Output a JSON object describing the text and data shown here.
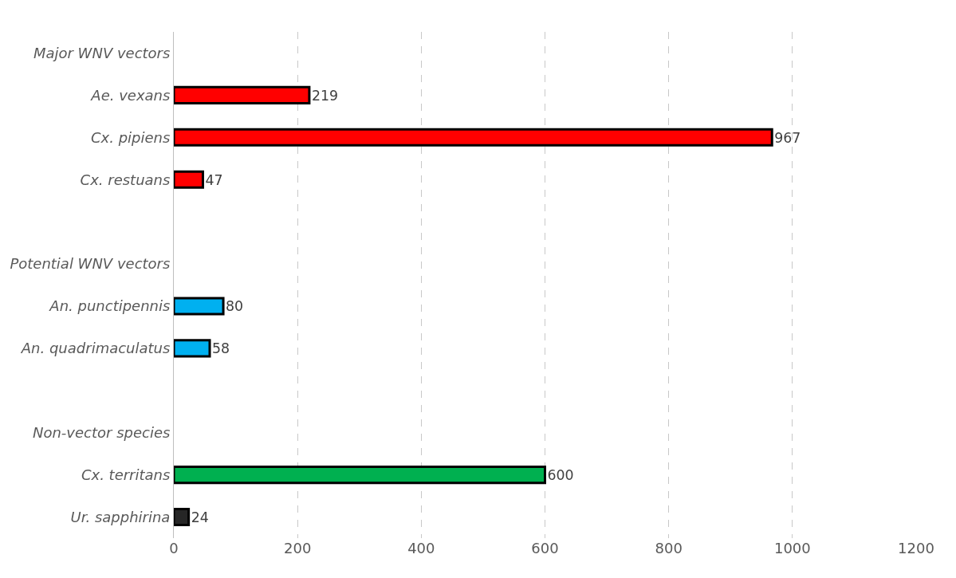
{
  "chart_data": {
    "type": "bar",
    "orientation": "horizontal",
    "categories": [
      "Major WNV vectors",
      "Ae. vexans",
      "Cx. pipiens",
      "Cx. restuans",
      null,
      "Potential WNV vectors",
      "An. punctipennis",
      "An. quadrimaculatus",
      null,
      "Non-vector species",
      "Cx. territans",
      "Ur. sapphirina"
    ],
    "values": [
      null,
      219,
      967,
      47,
      null,
      null,
      80,
      58,
      null,
      null,
      600,
      24
    ],
    "colors": [
      null,
      "#ff0000",
      "#ff0000",
      "#ff0000",
      null,
      null,
      "#00b0f0",
      "#00b0f0",
      null,
      null,
      "#00b050",
      "#262626"
    ],
    "xlim": [
      0,
      1200
    ],
    "xticks": [
      0,
      200,
      400,
      600,
      800,
      1000,
      1200
    ],
    "grid": "x",
    "data_labels": true
  }
}
